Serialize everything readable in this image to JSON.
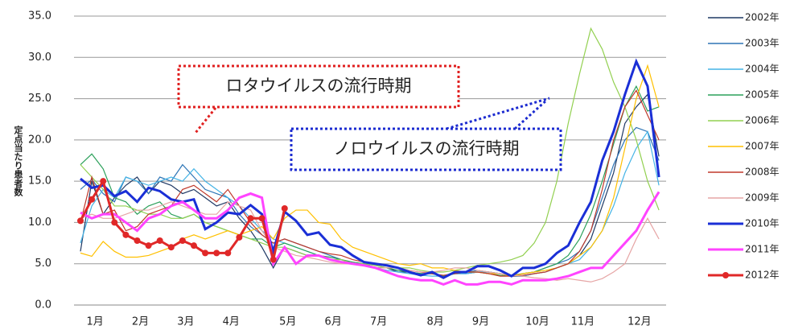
{
  "chart_data": {
    "type": "line",
    "y_label": "定点当たり患者数",
    "annotations": [
      "ロタウイルスの流行時期",
      "ノロウイルスの流行時期"
    ],
    "categories": [
      null,
      "1月",
      null,
      null,
      null,
      "2月",
      null,
      null,
      null,
      "3月",
      null,
      null,
      null,
      "4月",
      null,
      null,
      null,
      null,
      "5月",
      null,
      null,
      null,
      "6月",
      null,
      null,
      null,
      "7月",
      null,
      null,
      null,
      null,
      "8月",
      null,
      null,
      null,
      "9月",
      null,
      null,
      null,
      null,
      "10月",
      null,
      null,
      null,
      "11月",
      null,
      null,
      null,
      null,
      "12月",
      null,
      null
    ],
    "ylim": [
      0,
      35
    ],
    "yticks": [
      {
        "value": 0,
        "label": "0.0"
      },
      {
        "value": 5,
        "label": "5.0"
      },
      {
        "value": 10,
        "label": "10.0"
      },
      {
        "value": 15,
        "label": "15.0"
      },
      {
        "value": 20,
        "label": "20.0"
      },
      {
        "value": 25,
        "label": "25.0"
      },
      {
        "value": 30,
        "label": "30.0"
      },
      {
        "value": 35,
        "label": "35.0"
      }
    ],
    "grid": true,
    "legend": "right",
    "series": [
      {
        "name": "2002年",
        "color": "#1f3864",
        "values": [
          6.5,
          15.0,
          11.0,
          13.0,
          14.5,
          15.5,
          13.5,
          15.0,
          14.5,
          13.5,
          14.0,
          13.0,
          12.0,
          12.5,
          10.5,
          9.0,
          7.0,
          4.5,
          7.0,
          6.5,
          6.0,
          6.0,
          5.5,
          5.5,
          5.0,
          5.0,
          4.5,
          4.5,
          4.0,
          4.0,
          3.8,
          3.8,
          3.5,
          3.8,
          3.8,
          4.0,
          4.0,
          3.8,
          3.5,
          3.5,
          3.8,
          4.0,
          4.5,
          5.0,
          6.0,
          8.0,
          12.0,
          16.0,
          22.0,
          24.0,
          25.5,
          18.0
        ]
      },
      {
        "name": "2003年",
        "color": "#2e75b6",
        "values": [
          14.0,
          15.2,
          13.5,
          12.5,
          15.5,
          15.0,
          13.5,
          15.5,
          15.0,
          17.0,
          15.5,
          14.0,
          13.5,
          13.0,
          11.0,
          9.5,
          8.5,
          7.5,
          8.0,
          7.5,
          7.0,
          6.5,
          6.0,
          5.5,
          5.0,
          5.0,
          4.5,
          4.5,
          4.2,
          4.0,
          3.8,
          3.8,
          3.5,
          4.0,
          4.0,
          4.2,
          4.0,
          3.8,
          3.6,
          3.8,
          4.0,
          4.5,
          5.0,
          5.5,
          6.5,
          9.0,
          13.0,
          17.0,
          20.0,
          21.5,
          21.0,
          17.5
        ]
      },
      {
        "name": "2004年",
        "color": "#45b4e6",
        "values": [
          7.5,
          12.0,
          14.0,
          13.0,
          15.5,
          15.0,
          14.5,
          15.0,
          15.5,
          15.0,
          16.5,
          15.0,
          14.0,
          13.0,
          12.0,
          10.5,
          9.0,
          8.0,
          7.5,
          7.0,
          6.5,
          6.0,
          5.5,
          5.2,
          5.0,
          4.8,
          4.5,
          4.2,
          4.0,
          3.8,
          3.6,
          3.5,
          3.5,
          3.8,
          3.8,
          4.0,
          4.0,
          3.8,
          3.5,
          3.5,
          3.8,
          4.0,
          4.5,
          5.0,
          5.5,
          7.0,
          9.0,
          12.0,
          16.0,
          19.0,
          21.0,
          14.5
        ]
      },
      {
        "name": "2005年",
        "color": "#2ca05a",
        "values": [
          17.0,
          18.3,
          16.5,
          13.0,
          12.5,
          11.0,
          12.0,
          12.5,
          11.0,
          10.5,
          11.0,
          10.0,
          9.5,
          9.0,
          8.5,
          8.0,
          8.0,
          7.0,
          7.5,
          7.0,
          6.5,
          6.0,
          5.8,
          5.5,
          5.2,
          5.0,
          4.8,
          4.5,
          4.2,
          4.0,
          3.8,
          3.8,
          3.5,
          3.8,
          4.0,
          4.0,
          3.8,
          3.6,
          3.5,
          3.8,
          4.0,
          4.5,
          5.0,
          6.0,
          8.0,
          11.0,
          15.0,
          19.5,
          24.0,
          26.5,
          23.5,
          24.0
        ]
      },
      {
        "name": "2006年",
        "color": "#92d050",
        "values": [
          17.0,
          15.5,
          14.0,
          12.0,
          12.0,
          11.5,
          11.0,
          11.0,
          10.5,
          10.5,
          11.0,
          10.0,
          9.5,
          9.0,
          8.5,
          8.0,
          7.5,
          7.0,
          7.0,
          6.5,
          6.0,
          6.0,
          5.5,
          5.5,
          5.0,
          5.0,
          4.8,
          4.5,
          4.5,
          4.5,
          4.2,
          4.0,
          4.0,
          4.2,
          4.5,
          4.8,
          5.0,
          5.2,
          5.5,
          6.0,
          7.5,
          10.0,
          15.0,
          22.0,
          28.0,
          33.5,
          31.0,
          27.0,
          24.0,
          20.0,
          15.0,
          11.5
        ]
      },
      {
        "name": "2007年",
        "color": "#ffc000",
        "values": [
          6.3,
          5.9,
          7.7,
          6.5,
          5.8,
          5.8,
          6.0,
          6.5,
          7.0,
          8.0,
          8.5,
          8.0,
          8.5,
          9.0,
          8.5,
          9.0,
          9.5,
          8.0,
          10.5,
          11.5,
          11.5,
          10.0,
          9.8,
          8.0,
          7.0,
          6.5,
          6.0,
          5.5,
          5.0,
          4.8,
          5.0,
          4.5,
          4.5,
          4.2,
          4.0,
          4.0,
          3.8,
          3.8,
          3.5,
          3.8,
          4.0,
          4.2,
          4.5,
          5.0,
          6.0,
          7.0,
          9.0,
          13.0,
          19.0,
          25.0,
          29.0,
          24.0
        ]
      },
      {
        "name": "2008年",
        "color": "#c0392b",
        "values": [
          10.0,
          15.5,
          11.0,
          11.5,
          9.0,
          9.5,
          11.0,
          11.5,
          12.0,
          14.0,
          14.5,
          13.5,
          12.5,
          14.0,
          12.0,
          10.0,
          8.5,
          7.5,
          8.0,
          7.5,
          7.0,
          6.5,
          6.2,
          6.0,
          5.5,
          5.2,
          5.0,
          4.8,
          4.5,
          4.2,
          4.0,
          3.8,
          3.6,
          3.8,
          4.0,
          4.0,
          3.8,
          3.5,
          3.5,
          3.6,
          3.8,
          4.0,
          4.5,
          5.0,
          6.5,
          9.0,
          14.0,
          20.0,
          24.0,
          26.0,
          23.0,
          20.0
        ]
      },
      {
        "name": "2009年",
        "color": "#e6a5a5",
        "values": [
          10.5,
          11.0,
          10.5,
          10.5,
          11.0,
          11.5,
          11.5,
          12.0,
          12.5,
          12.0,
          11.5,
          11.0,
          11.0,
          12.5,
          12.0,
          11.5,
          9.0,
          7.0,
          6.5,
          6.0,
          5.8,
          5.5,
          5.2,
          5.0,
          5.0,
          4.8,
          4.5,
          4.5,
          4.5,
          4.2,
          4.0,
          4.0,
          4.2,
          4.5,
          4.5,
          4.2,
          4.0,
          3.8,
          3.6,
          3.5,
          3.3,
          3.2,
          3.0,
          3.2,
          3.0,
          2.8,
          3.2,
          4.0,
          5.0,
          8.0,
          10.5,
          8.0
        ]
      },
      {
        "name": "2010年",
        "color": "#1a2fd6",
        "values": [
          15.3,
          14.2,
          14.5,
          13.2,
          13.8,
          12.5,
          14.2,
          13.8,
          12.8,
          12.5,
          12.8,
          9.2,
          10.0,
          11.2,
          11.0,
          12.1,
          11.0,
          6.5,
          11.3,
          10.2,
          8.5,
          8.8,
          7.3,
          7.0,
          6.0,
          5.2,
          5.0,
          4.8,
          4.5,
          4.0,
          3.6,
          4.0,
          3.3,
          4.0,
          4.0,
          4.7,
          4.7,
          4.2,
          3.5,
          4.5,
          4.5,
          5.0,
          6.3,
          7.2,
          10.0,
          12.5,
          17.5,
          21.0,
          25.5,
          29.5,
          26.5,
          15.5
        ]
      },
      {
        "name": "2011年",
        "color": "#ff44ff",
        "values": [
          11.2,
          10.5,
          11.0,
          11.0,
          10.0,
          9.0,
          10.5,
          11.0,
          12.0,
          12.5,
          11.5,
          10.5,
          10.5,
          11.5,
          13.0,
          13.5,
          13.0,
          5.0,
          7.0,
          5.0,
          6.0,
          6.0,
          5.5,
          5.2,
          5.0,
          4.8,
          4.5,
          4.0,
          3.5,
          3.2,
          3.0,
          3.0,
          2.5,
          3.0,
          2.5,
          2.5,
          2.8,
          2.8,
          2.5,
          3.0,
          3.0,
          3.0,
          3.2,
          3.5,
          4.0,
          4.5,
          4.5,
          6.0,
          7.5,
          9.0,
          11.5,
          13.7
        ]
      },
      {
        "name": "2012年",
        "color": "#e02828",
        "values": [
          10.2,
          12.8,
          15.0,
          10.0,
          8.5,
          7.8,
          7.2,
          7.8,
          7.0,
          7.8,
          7.2,
          6.3,
          6.3,
          6.3,
          8.2,
          10.5,
          10.5,
          5.5,
          11.7,
          null,
          null,
          null,
          null,
          null,
          null,
          null,
          null,
          null,
          null,
          null,
          null,
          null,
          null,
          null,
          null,
          null,
          null,
          null,
          null,
          null,
          null,
          null,
          null,
          null,
          null,
          null,
          null,
          null,
          null,
          null,
          null,
          null
        ]
      }
    ]
  }
}
